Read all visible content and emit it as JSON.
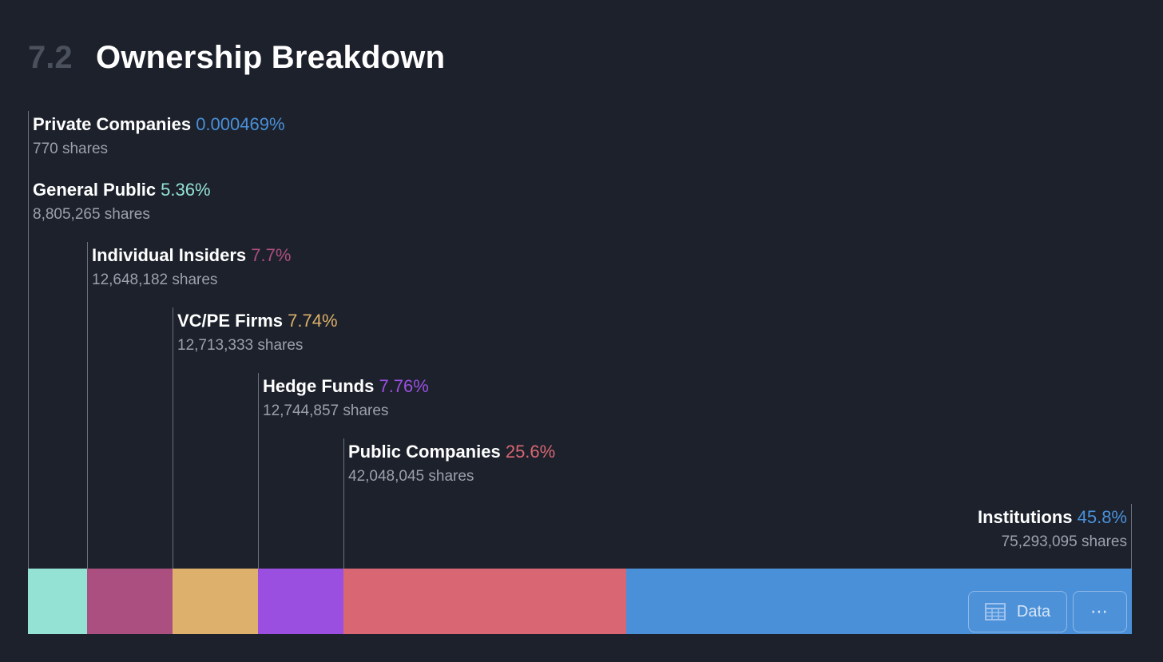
{
  "header": {
    "section_number": "7.2",
    "title": "Ownership Breakdown"
  },
  "chart_data": {
    "type": "bar",
    "subtype": "stacked-horizontal-100",
    "title": "Ownership Breakdown",
    "categories": [
      "Private Companies",
      "General Public",
      "Individual Insiders",
      "VC/PE Firms",
      "Hedge Funds",
      "Public Companies",
      "Institutions"
    ],
    "series": [
      {
        "name": "Private Companies",
        "pct_label": "0.000469%",
        "value": 0.000469,
        "shares_label": "770 shares",
        "color": "#4a90d9"
      },
      {
        "name": "General Public",
        "pct_label": "5.36%",
        "value": 5.36,
        "shares_label": "8,805,265 shares",
        "color": "#94e2d3"
      },
      {
        "name": "Individual Insiders",
        "pct_label": "7.7%",
        "value": 7.7,
        "shares_label": "12,648,182 shares",
        "color": "#ab4f80"
      },
      {
        "name": "VC/PE Firms",
        "pct_label": "7.74%",
        "value": 7.74,
        "shares_label": "12,713,333 shares",
        "color": "#ddb06b"
      },
      {
        "name": "Hedge Funds",
        "pct_label": "7.76%",
        "value": 7.76,
        "shares_label": "12,744,857 shares",
        "color": "#9a4fe0"
      },
      {
        "name": "Public Companies",
        "pct_label": "25.6%",
        "value": 25.6,
        "shares_label": "42,048,045 shares",
        "color": "#d96773"
      },
      {
        "name": "Institutions",
        "pct_label": "45.8%",
        "value": 45.8,
        "shares_label": "75,293,095 shares",
        "color": "#4a90d9"
      }
    ]
  },
  "controls": {
    "data_button_label": "Data",
    "more_button_label": "⋯",
    "table_icon": "table-icon",
    "more_icon": "more-icon"
  }
}
